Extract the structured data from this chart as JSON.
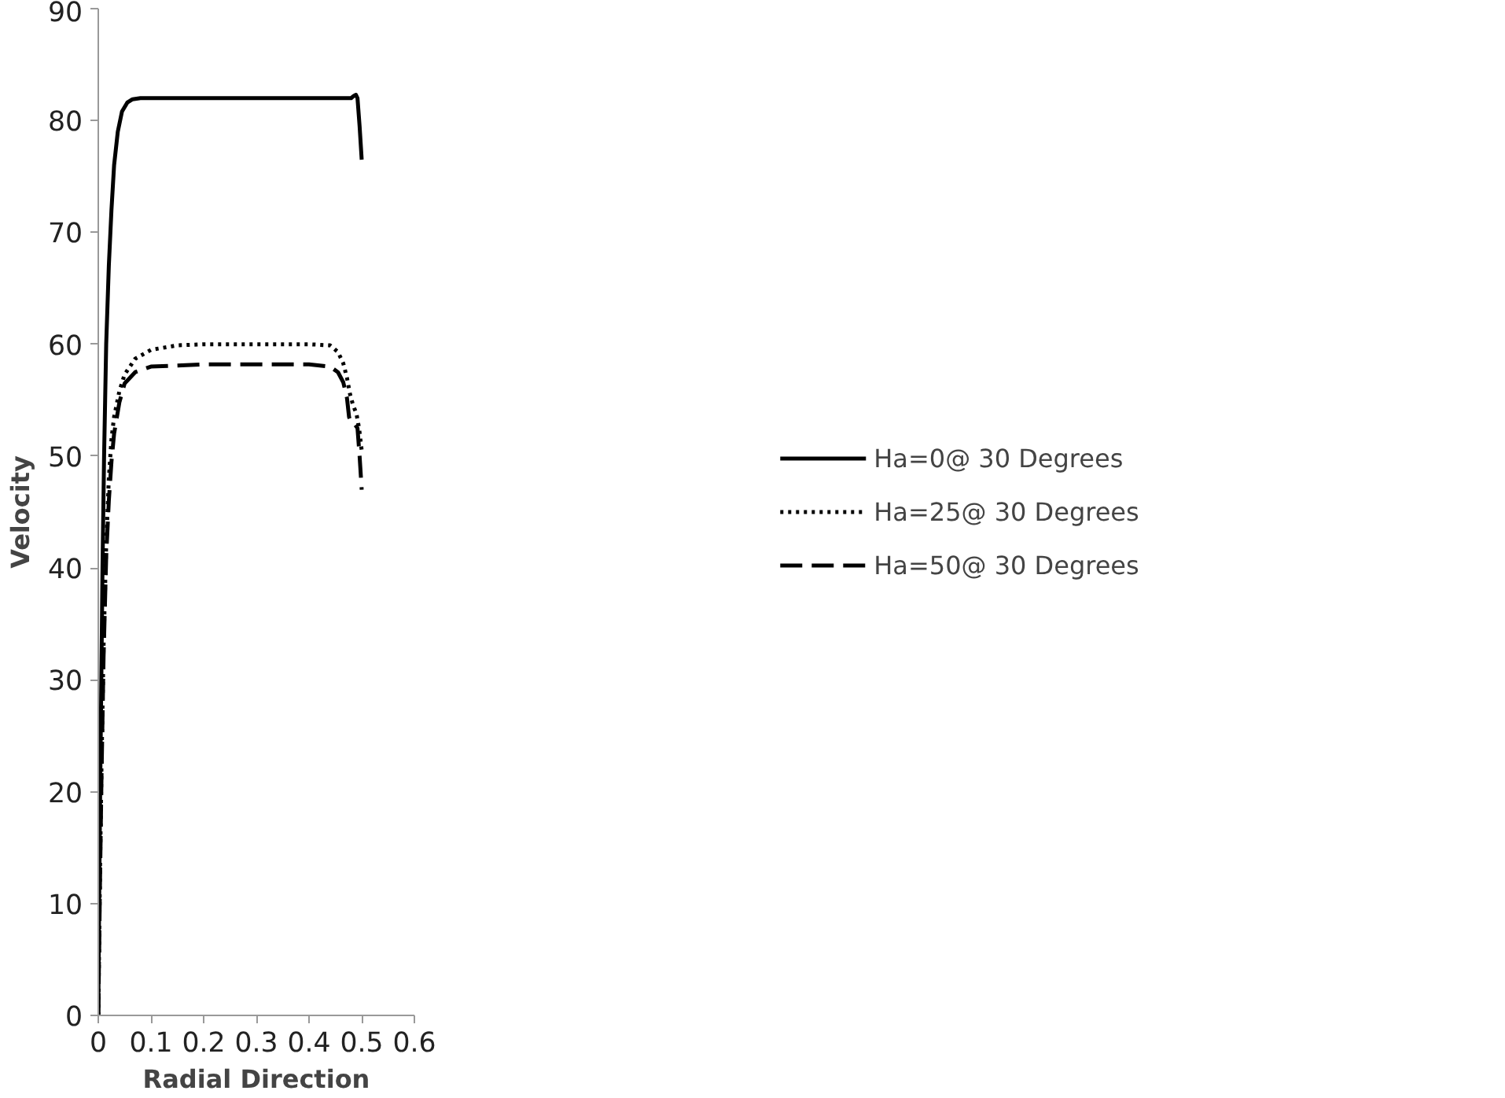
{
  "chart_data": {
    "type": "line",
    "xlabel": "Radial Direction",
    "ylabel": "Velocity",
    "xlim": [
      0,
      0.6
    ],
    "ylim": [
      0,
      90
    ],
    "xticks": [
      0,
      0.1,
      0.2,
      0.3,
      0.4,
      0.5,
      0.6
    ],
    "yticks": [
      0,
      10,
      20,
      30,
      40,
      50,
      60,
      70,
      80,
      90
    ],
    "grid": false,
    "legend": "right",
    "marker": "none",
    "series": [
      {
        "name": "Ha=0@ 30 Degrees",
        "color": "#000000",
        "line_style": "solid",
        "x": [
          0,
          0.002,
          0.004,
          0.006,
          0.008,
          0.011,
          0.015,
          0.02,
          0.025,
          0.03,
          0.037,
          0.045,
          0.055,
          0.065,
          0.08,
          0.1,
          0.2,
          0.3,
          0.4,
          0.48,
          0.485,
          0.489,
          0.492,
          0.496,
          0.5
        ],
        "values": [
          0,
          12,
          22,
          31,
          40,
          50,
          60,
          67,
          72,
          76,
          79,
          80.8,
          81.6,
          81.9,
          82,
          82,
          82,
          82,
          82,
          82,
          82.2,
          82.3,
          82,
          79.5,
          76.5
        ]
      },
      {
        "name": "Ha=25@ 30 Degrees",
        "color": "#000000",
        "line_style": "dotted",
        "x": [
          0,
          0.003,
          0.006,
          0.01,
          0.015,
          0.02,
          0.025,
          0.03,
          0.04,
          0.05,
          0.07,
          0.1,
          0.15,
          0.2,
          0.3,
          0.4,
          0.44,
          0.455,
          0.465,
          0.472,
          0.478,
          0.484,
          0.49,
          0.495,
          0.5
        ],
        "values": [
          0,
          12,
          22,
          33,
          42,
          48,
          51.5,
          53.5,
          55.8,
          57.3,
          58.7,
          59.5,
          59.9,
          60,
          60,
          60,
          59.9,
          59.3,
          58.3,
          57,
          55.5,
          54.5,
          53.8,
          52.5,
          50.5
        ]
      },
      {
        "name": "Ha=50@ 30 Degrees",
        "color": "#000000",
        "line_style": "dashed",
        "x": [
          0,
          0.003,
          0.006,
          0.01,
          0.015,
          0.02,
          0.025,
          0.03,
          0.04,
          0.05,
          0.07,
          0.1,
          0.2,
          0.3,
          0.4,
          0.44,
          0.455,
          0.465,
          0.472,
          0.476,
          0.48,
          0.486,
          0.492,
          0.496,
          0.5
        ],
        "values": [
          0,
          11,
          21,
          32,
          41,
          46,
          49.5,
          52,
          54.8,
          56.5,
          57.5,
          58,
          58.2,
          58.2,
          58.2,
          58,
          57.5,
          56.6,
          55.2,
          53.5,
          53,
          52.9,
          52.5,
          50,
          47
        ]
      }
    ]
  }
}
